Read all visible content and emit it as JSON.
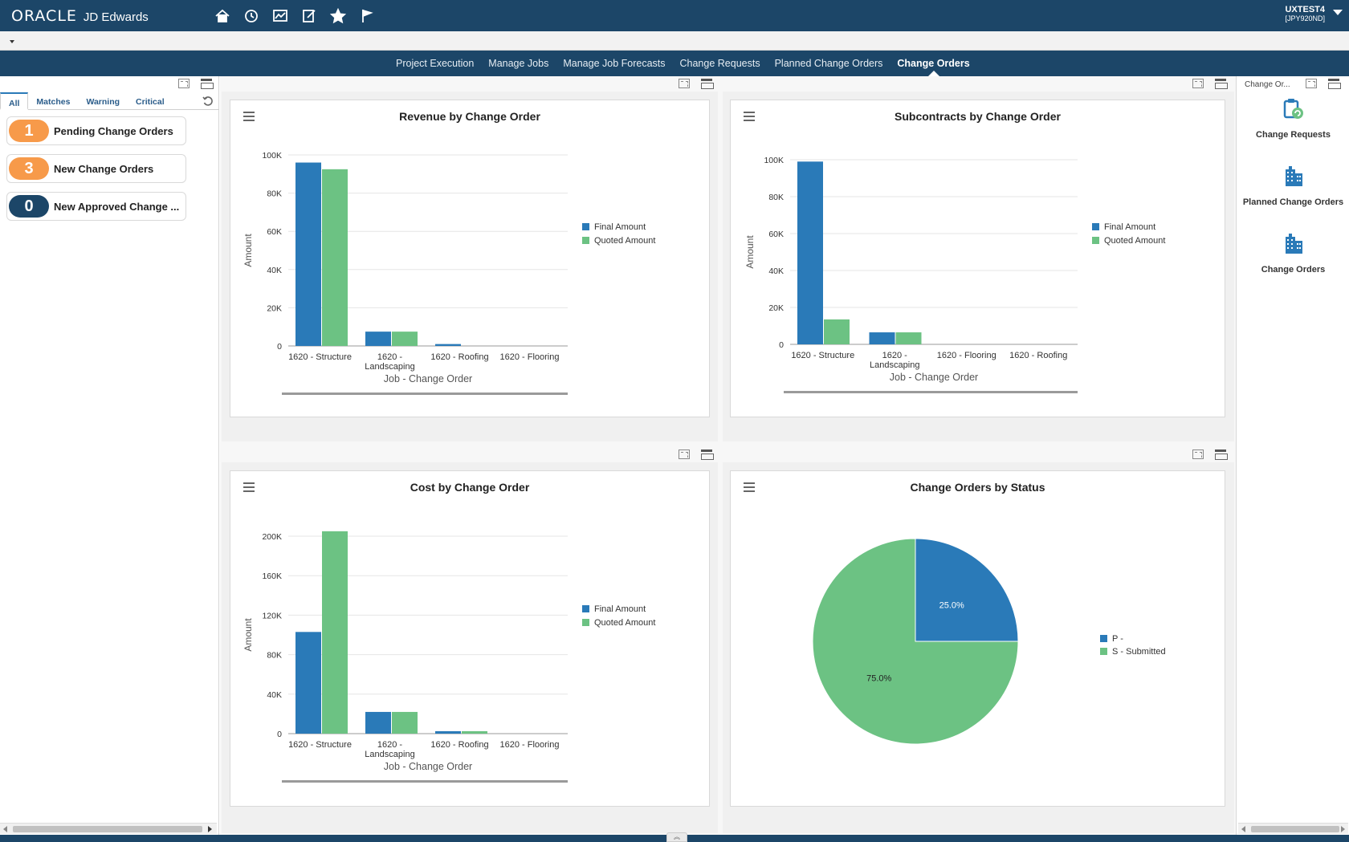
{
  "header": {
    "brand_oracle": "ORACLE",
    "brand_jde": "JD Edwards",
    "icons": [
      "home-icon",
      "recent-icon",
      "watchlist-icon",
      "task-icon",
      "favorites-icon",
      "flag-icon"
    ],
    "user_name": "UXTEST4",
    "user_env": "[JPY920ND]"
  },
  "nav": {
    "tabs": [
      {
        "label": "Project Execution",
        "active": false
      },
      {
        "label": "Manage Jobs",
        "active": false
      },
      {
        "label": "Manage Job Forecasts",
        "active": false
      },
      {
        "label": "Change Requests",
        "active": false
      },
      {
        "label": "Planned Change Orders",
        "active": false
      },
      {
        "label": "Change Orders",
        "active": true
      }
    ]
  },
  "watchlist": {
    "tabs": [
      "All",
      "Matches",
      "Warning",
      "Critical"
    ],
    "active_tab": "All",
    "items": [
      {
        "count": "1",
        "label": "Pending Change Orders",
        "color": "#f79a4a"
      },
      {
        "count": "3",
        "label": "New Change Orders",
        "color": "#f79a4a"
      },
      {
        "count": "0",
        "label": "New Approved Change ...",
        "color": "#1c4668"
      }
    ]
  },
  "colors": {
    "final": "#2a7ab8",
    "quoted": "#6cc283",
    "header": "#1c4668"
  },
  "chart_data": [
    {
      "type": "bar",
      "title": "Revenue by Change Order",
      "categories": [
        "1620 - Structure",
        "1620 - Landscaping",
        "1620 - Roofing",
        "1620 - Flooring"
      ],
      "series": [
        {
          "name": "Final Amount",
          "values": [
            96000,
            7500,
            1000,
            0
          ]
        },
        {
          "name": "Quoted Amount",
          "values": [
            92500,
            7500,
            0,
            0
          ]
        }
      ],
      "xlabel": "Job - Change Order",
      "ylabel": "Amount",
      "ylim": [
        0,
        100000
      ],
      "yticks": [
        0,
        20000,
        40000,
        60000,
        80000,
        100000
      ],
      "ytick_labels": [
        "0",
        "20K",
        "40K",
        "60K",
        "80K",
        "100K"
      ]
    },
    {
      "type": "bar",
      "title": "Subcontracts by Change Order",
      "categories": [
        "1620 - Structure",
        "1620 - Landscaping",
        "1620 - Flooring",
        "1620 - Roofing"
      ],
      "series": [
        {
          "name": "Final Amount",
          "values": [
            99000,
            6500,
            0,
            0
          ]
        },
        {
          "name": "Quoted Amount",
          "values": [
            13500,
            6500,
            0,
            0
          ]
        }
      ],
      "xlabel": "Job - Change Order",
      "ylabel": "Amount",
      "ylim": [
        0,
        100000
      ],
      "yticks": [
        0,
        20000,
        40000,
        60000,
        80000,
        100000
      ],
      "ytick_labels": [
        "0",
        "20K",
        "40K",
        "60K",
        "80K",
        "100K"
      ]
    },
    {
      "type": "bar",
      "title": "Cost by Change Order",
      "categories": [
        "1620 - Structure",
        "1620 - Landscaping",
        "1620 - Roofing",
        "1620 - Flooring"
      ],
      "series": [
        {
          "name": "Final Amount",
          "values": [
            103000,
            22000,
            2500,
            0
          ]
        },
        {
          "name": "Quoted Amount",
          "values": [
            205000,
            22000,
            2500,
            0
          ]
        }
      ],
      "xlabel": "Job - Change Order",
      "ylabel": "Amount",
      "ylim": [
        0,
        200000
      ],
      "yticks": [
        0,
        40000,
        80000,
        120000,
        160000,
        200000
      ],
      "ytick_labels": [
        "0",
        "40K",
        "80K",
        "120K",
        "160K",
        "200K"
      ]
    },
    {
      "type": "pie",
      "title": "Change Orders by Status",
      "labels": [
        "P -",
        "S - Submitted"
      ],
      "values": [
        25.0,
        75.0
      ],
      "value_labels": [
        "25.0%",
        "75.0%"
      ],
      "colors": [
        "#2a7ab8",
        "#6cc283"
      ]
    }
  ],
  "springboard": {
    "title": "Change Or...",
    "items": [
      {
        "label": "Change Requests",
        "icon": "change-requests-icon"
      },
      {
        "label": "Planned Change Orders",
        "icon": "planned-change-orders-icon"
      },
      {
        "label": "Change Orders",
        "icon": "change-orders-icon"
      }
    ]
  }
}
